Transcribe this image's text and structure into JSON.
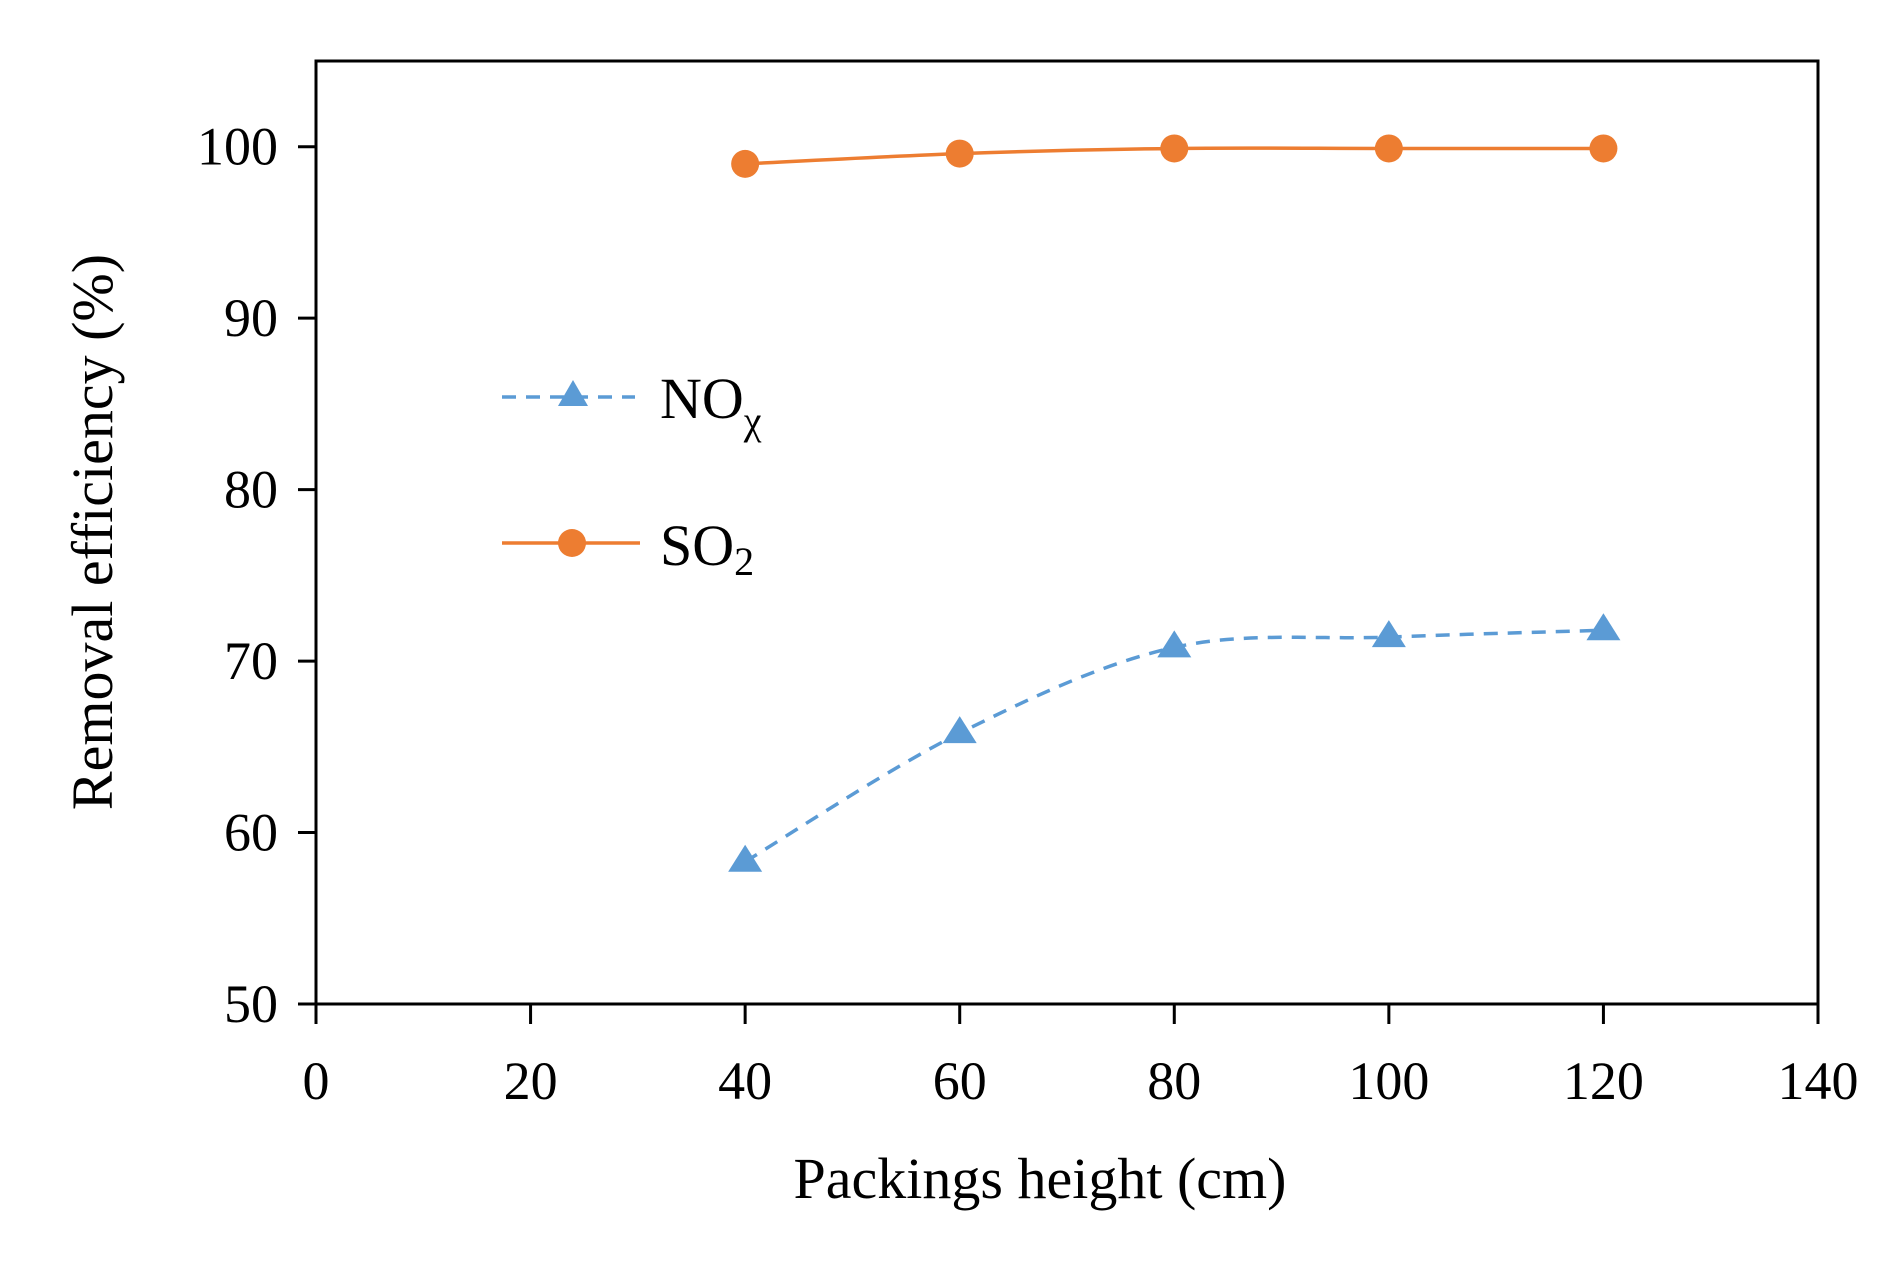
{
  "chart_data": {
    "type": "line",
    "title": "",
    "xlabel": "Packings  height  (cm)",
    "ylabel": "Removal efficiency (%)",
    "xlim": [
      0,
      140
    ],
    "ylim": [
      50,
      105
    ],
    "xticks": [
      "0",
      "20",
      "40",
      "60",
      "80",
      "100",
      "120",
      "140"
    ],
    "yticks": [
      "50",
      "60",
      "70",
      "80",
      "90",
      "100"
    ],
    "x": [
      40,
      60,
      80,
      100,
      120
    ],
    "grid": false,
    "legend_position": "left-middle",
    "series": [
      {
        "name": "NOχ",
        "legend_main": "NO",
        "legend_sub": "χ",
        "values": [
          58.3,
          65.8,
          70.8,
          71.4,
          71.8
        ],
        "color": "#5B9BD5",
        "marker": "triangle",
        "line_style": "dashed"
      },
      {
        "name": "SO2",
        "legend_main": "SO",
        "legend_sub": "2",
        "values": [
          99.0,
          99.6,
          99.9,
          99.9,
          99.9
        ],
        "color": "#ED7D31",
        "marker": "circle",
        "line_style": "solid"
      }
    ]
  }
}
